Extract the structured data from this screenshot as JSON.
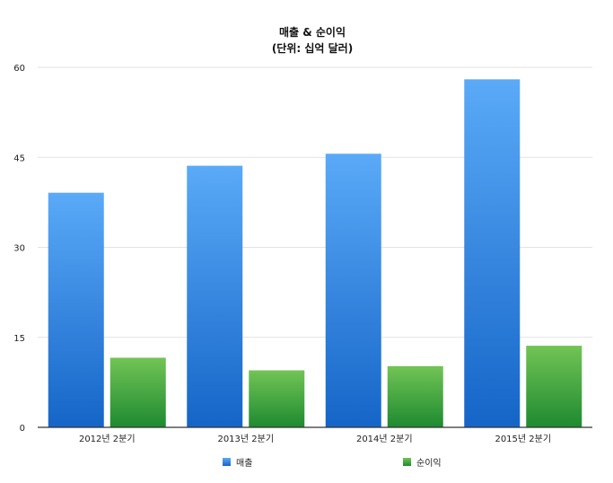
{
  "chart_data": {
    "type": "bar",
    "title": "매출 & 순이익",
    "subtitle": "(단위: 십억 달러)",
    "categories": [
      "2012년 2분기",
      "2013년 2분기",
      "2014년 2분기",
      "2015년 2분기"
    ],
    "series": [
      {
        "name": "매출",
        "values": [
          39.1,
          43.6,
          45.6,
          58.0
        ],
        "color_top": "#5aaaf8",
        "color_bottom": "#1565c8"
      },
      {
        "name": "순이익",
        "values": [
          11.6,
          9.5,
          10.2,
          13.6
        ],
        "color_top": "#72c455",
        "color_bottom": "#1e8a30"
      }
    ],
    "y_ticks": [
      0,
      15,
      30,
      45,
      60
    ],
    "ylim": [
      0,
      60
    ],
    "grid": true,
    "legend_position": "bottom"
  }
}
